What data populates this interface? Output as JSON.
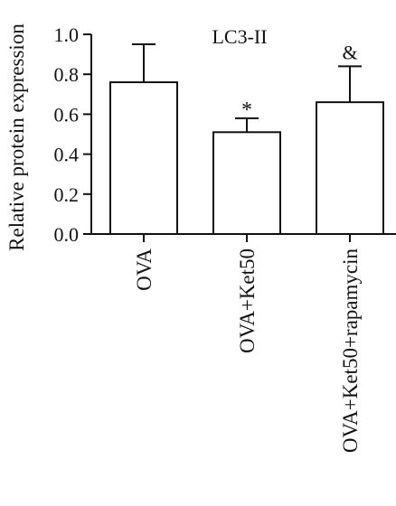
{
  "chart_data": {
    "type": "bar",
    "title": "LC3-II",
    "ylabel": "Relative protein expression",
    "xlabel": "",
    "categories": [
      "OVA",
      "OVA+Ket50",
      "OVA+Ket50+rapamycin"
    ],
    "values": [
      0.76,
      0.51,
      0.66
    ],
    "errors": [
      0.19,
      0.07,
      0.18
    ],
    "annotations": [
      "",
      "*",
      "&"
    ],
    "ylim": [
      0,
      1.0
    ],
    "yticks": [
      "0.0",
      "0.2",
      "0.4",
      "0.6",
      "0.8",
      "1.0"
    ],
    "grid": false,
    "colors": {
      "bar_fill": "#ffffff",
      "stroke": "#111111"
    }
  }
}
